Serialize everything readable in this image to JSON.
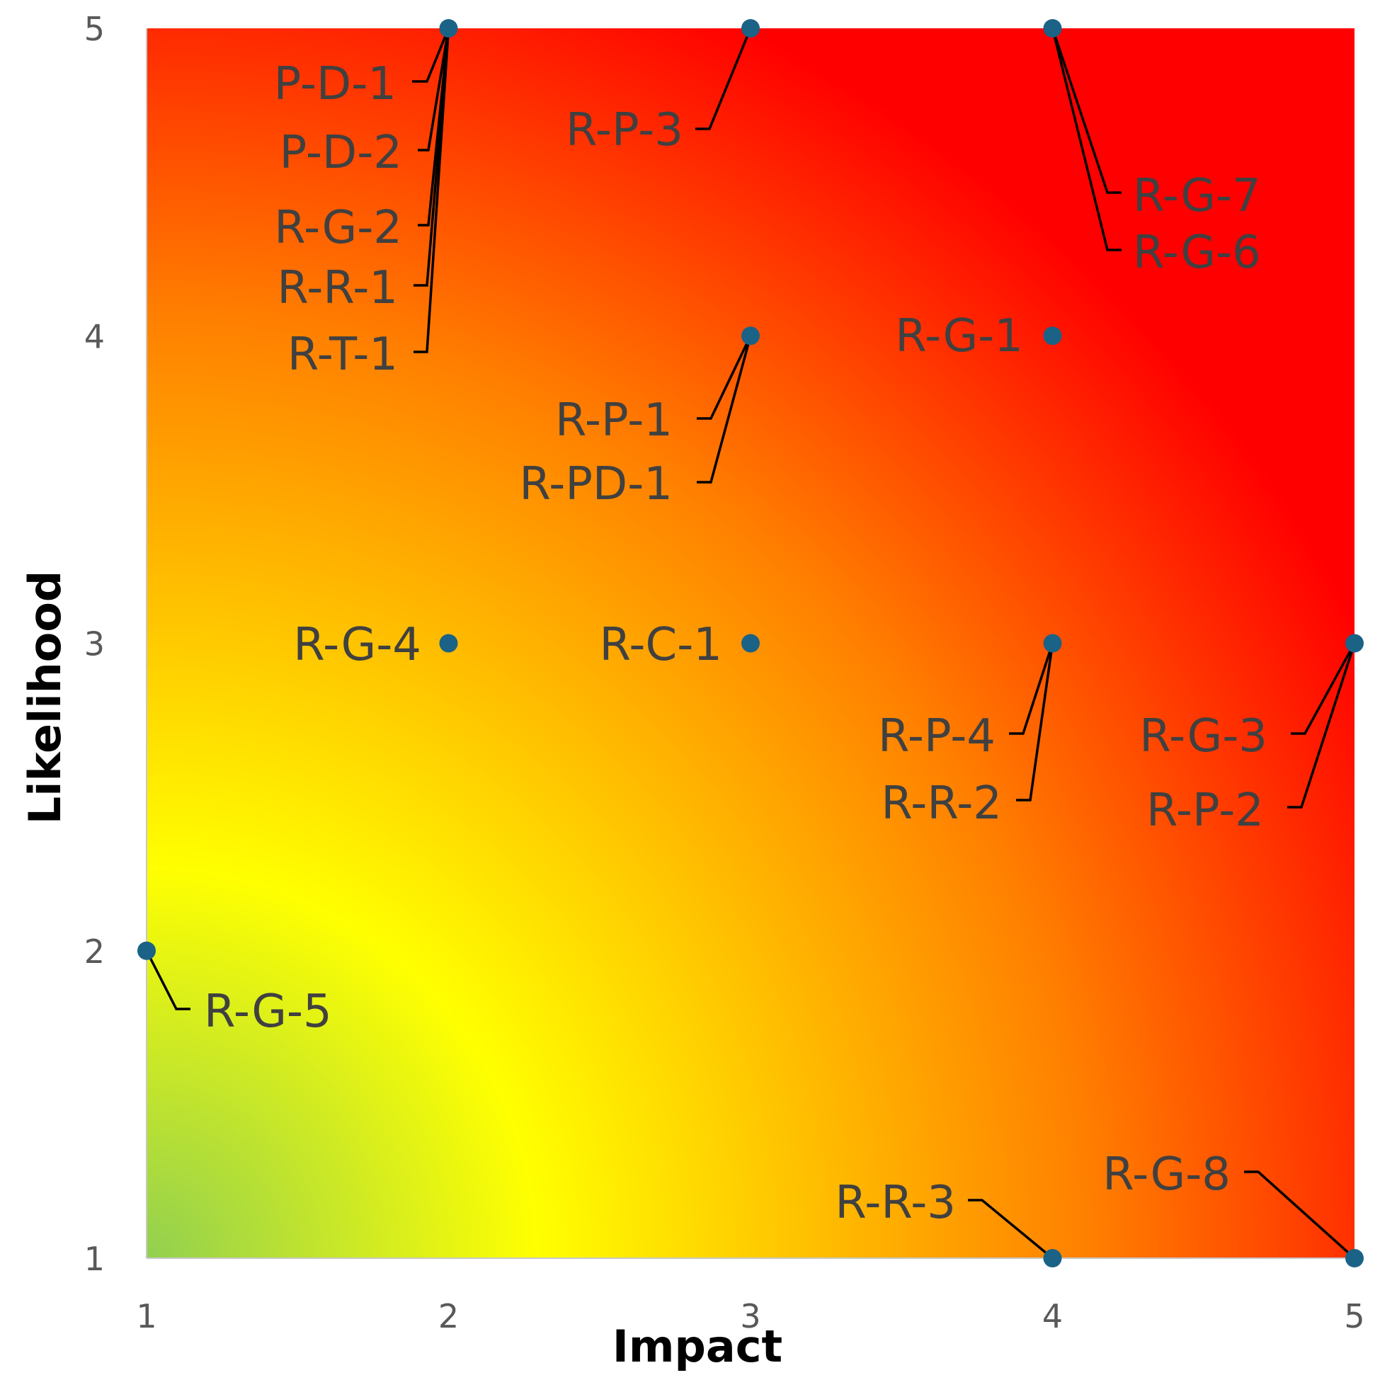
{
  "chart_data": {
    "type": "scatter",
    "xlabel": "Impact",
    "ylabel": "Likelihood",
    "xlim": [
      1,
      5
    ],
    "ylim": [
      1,
      5
    ],
    "x_ticks": [
      "1",
      "2",
      "3",
      "4",
      "5"
    ],
    "y_ticks": [
      "1",
      "2",
      "3",
      "4",
      "5"
    ],
    "grid": false,
    "background": "heatmap gradient: green at low impact/likelihood, yellow, orange, red at high impact/likelihood",
    "colors": {
      "marker": "#1b6287",
      "green": "#92d050",
      "yellow": "#ffff00",
      "orange": "#ff7f00",
      "red": "#ff0000",
      "label": "#404040",
      "leader": "#000000"
    },
    "points": [
      {
        "label": "P-D-1",
        "x": 2,
        "y": 5
      },
      {
        "label": "P-D-2",
        "x": 2,
        "y": 5
      },
      {
        "label": "R-G-2",
        "x": 2,
        "y": 5
      },
      {
        "label": "R-R-1",
        "x": 2,
        "y": 5
      },
      {
        "label": "R-T-1",
        "x": 2,
        "y": 5
      },
      {
        "label": "R-P-3",
        "x": 3,
        "y": 5
      },
      {
        "label": "R-G-7",
        "x": 4,
        "y": 5
      },
      {
        "label": "R-G-6",
        "x": 4,
        "y": 5
      },
      {
        "label": "R-G-1",
        "x": 4,
        "y": 4
      },
      {
        "label": "R-P-1",
        "x": 3,
        "y": 4
      },
      {
        "label": "R-PD-1",
        "x": 3,
        "y": 4
      },
      {
        "label": "R-G-4",
        "x": 2,
        "y": 3
      },
      {
        "label": "R-C-1",
        "x": 3,
        "y": 3
      },
      {
        "label": "R-P-4",
        "x": 4,
        "y": 3
      },
      {
        "label": "R-R-2",
        "x": 4,
        "y": 3
      },
      {
        "label": "R-G-3",
        "x": 5,
        "y": 3
      },
      {
        "label": "R-P-2",
        "x": 5,
        "y": 3
      },
      {
        "label": "R-G-5",
        "x": 1,
        "y": 2
      },
      {
        "label": "R-R-3",
        "x": 4,
        "y": 1
      },
      {
        "label": "R-G-8",
        "x": 5,
        "y": 1
      }
    ]
  }
}
